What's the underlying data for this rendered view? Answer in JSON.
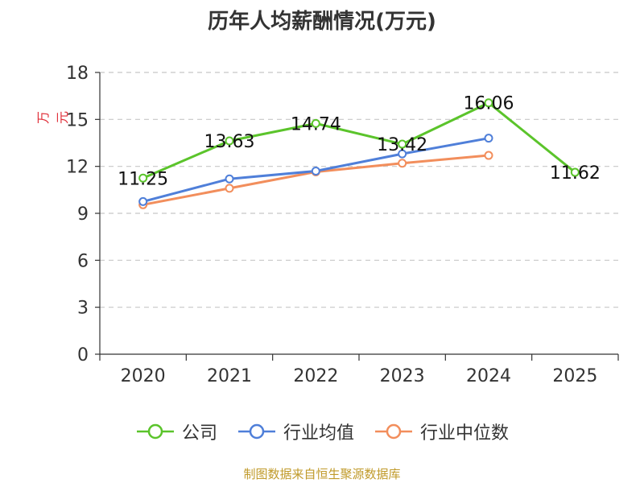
{
  "chart_data": {
    "type": "line",
    "title": "历年人均薪酬情况(万元)",
    "ylabel": "万元",
    "xlabel": "",
    "categories": [
      "2020",
      "2021",
      "2022",
      "2023",
      "2024",
      "2025"
    ],
    "ylim": [
      0,
      18
    ],
    "yticks": [
      0,
      3,
      6,
      9,
      12,
      15,
      18
    ],
    "grid": true,
    "legend_position": "bottom",
    "series": [
      {
        "name": "公司",
        "color": "#5bc42b",
        "values": [
          11.25,
          13.63,
          14.74,
          13.42,
          16.06,
          11.62
        ],
        "labels": [
          "11.25",
          "13.63",
          "14.74",
          "13.42",
          "16.06",
          "11.62"
        ]
      },
      {
        "name": "行业均值",
        "color": "#4f7fd9",
        "values": [
          9.75,
          11.2,
          11.7,
          12.8,
          13.8,
          null
        ]
      },
      {
        "name": "行业中位数",
        "color": "#f28e5c",
        "values": [
          9.55,
          10.6,
          11.65,
          12.2,
          12.7,
          null
        ]
      }
    ]
  },
  "footer": {
    "source": "制图数据来自恒生聚源数据库"
  }
}
